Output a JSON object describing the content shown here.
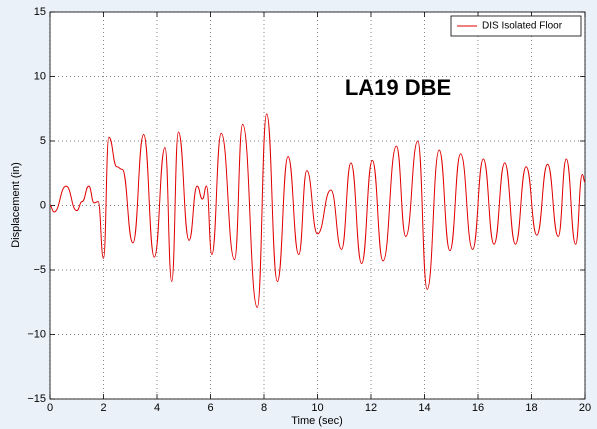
{
  "chart_data": {
    "type": "line",
    "annotation": "LA19 DBE",
    "xlabel": "Time (sec)",
    "ylabel": "Displacement (in)",
    "xlim": [
      0,
      20
    ],
    "xticks": [
      0,
      2,
      4,
      6,
      8,
      10,
      12,
      14,
      16,
      18,
      20
    ],
    "ylim": [
      -15,
      15
    ],
    "yticks": [
      {
        "value": -15,
        "label": "−15"
      },
      {
        "value": -10,
        "label": "−10"
      },
      {
        "value": -5,
        "label": "−5"
      },
      0,
      5,
      10,
      15
    ],
    "grid": true,
    "legend": "northeast",
    "x": [
      0,
      0.15,
      0.6,
      1.0,
      1.2,
      1.45,
      1.65,
      1.8,
      2.0,
      2.2,
      2.5,
      2.7,
      3.1,
      3.5,
      3.9,
      4.3,
      4.55,
      4.8,
      5.2,
      5.5,
      5.7,
      5.85,
      6.05,
      6.4,
      6.9,
      7.2,
      7.75,
      8.1,
      8.5,
      8.9,
      9.3,
      9.6,
      10.0,
      10.5,
      10.9,
      11.25,
      11.65,
      12.05,
      12.45,
      12.95,
      13.3,
      13.75,
      14.1,
      14.55,
      14.95,
      15.35,
      15.8,
      16.2,
      16.6,
      17.0,
      17.4,
      17.8,
      18.2,
      18.6,
      19.0,
      19.3,
      19.65,
      19.9,
      20
    ],
    "series": [
      {
        "name": "DIS Isolated Floor",
        "color": "#e00000",
        "values": [
          0,
          -0.5,
          1.5,
          -0.4,
          0.3,
          1.5,
          0.2,
          0.3,
          -4.1,
          5.3,
          3.0,
          2.8,
          -2.9,
          5.5,
          -4.0,
          4.5,
          -5.9,
          5.7,
          -2.7,
          1.5,
          0.5,
          1.5,
          -3.8,
          5.6,
          -4.2,
          6.3,
          -7.9,
          7.1,
          -5.9,
          3.8,
          -3.8,
          2.7,
          -2.2,
          1.2,
          -3.4,
          3.3,
          -4.5,
          3.5,
          -4.3,
          4.6,
          -2.4,
          5.0,
          -6.5,
          4.3,
          -3.5,
          4.0,
          -3.4,
          3.6,
          -3.0,
          3.3,
          -3.0,
          3.0,
          -2.3,
          3.2,
          -2.4,
          3.6,
          -3.0,
          2.4,
          1.8
        ]
      }
    ]
  }
}
